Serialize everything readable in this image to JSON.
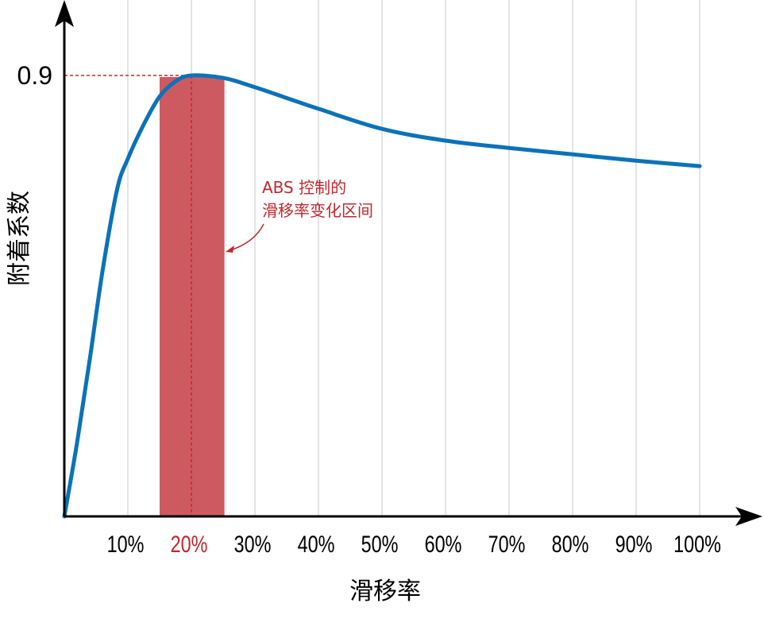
{
  "chart_data": {
    "type": "line",
    "xlabel": "滑移率",
    "ylabel": "附着系数",
    "x_ticks": [
      "10%",
      "20%",
      "30%",
      "40%",
      "50%",
      "60%",
      "70%",
      "80%",
      "90%",
      "100%"
    ],
    "highlight_tick": "20%",
    "y_ticks": [
      "0.9"
    ],
    "xlim": [
      0,
      100
    ],
    "ylim": [
      0,
      0.9
    ],
    "grid": "vertical",
    "series": [
      {
        "x": [
          0,
          2,
          4,
          6,
          8.3,
          10,
          12.5,
          15,
          17.5,
          20,
          25,
          30,
          40,
          50,
          60,
          70,
          80,
          90,
          100
        ],
        "y": [
          0,
          0.15,
          0.32,
          0.5,
          0.667,
          0.73,
          0.8,
          0.857,
          0.888,
          0.9,
          0.895,
          0.876,
          0.832,
          0.791,
          0.767,
          0.752,
          0.739,
          0.726,
          0.715
        ],
        "color": "#0b72b9"
      }
    ],
    "band": {
      "x": [
        15,
        25.2
      ],
      "color": "#cd5a60"
    },
    "peak_marker": {
      "x": 20,
      "y": 0.9,
      "color": "#c0282e"
    },
    "annotation": {
      "lines": [
        "ABS 控制的",
        "滑移率变化区间"
      ],
      "color": "#c0282e"
    }
  }
}
